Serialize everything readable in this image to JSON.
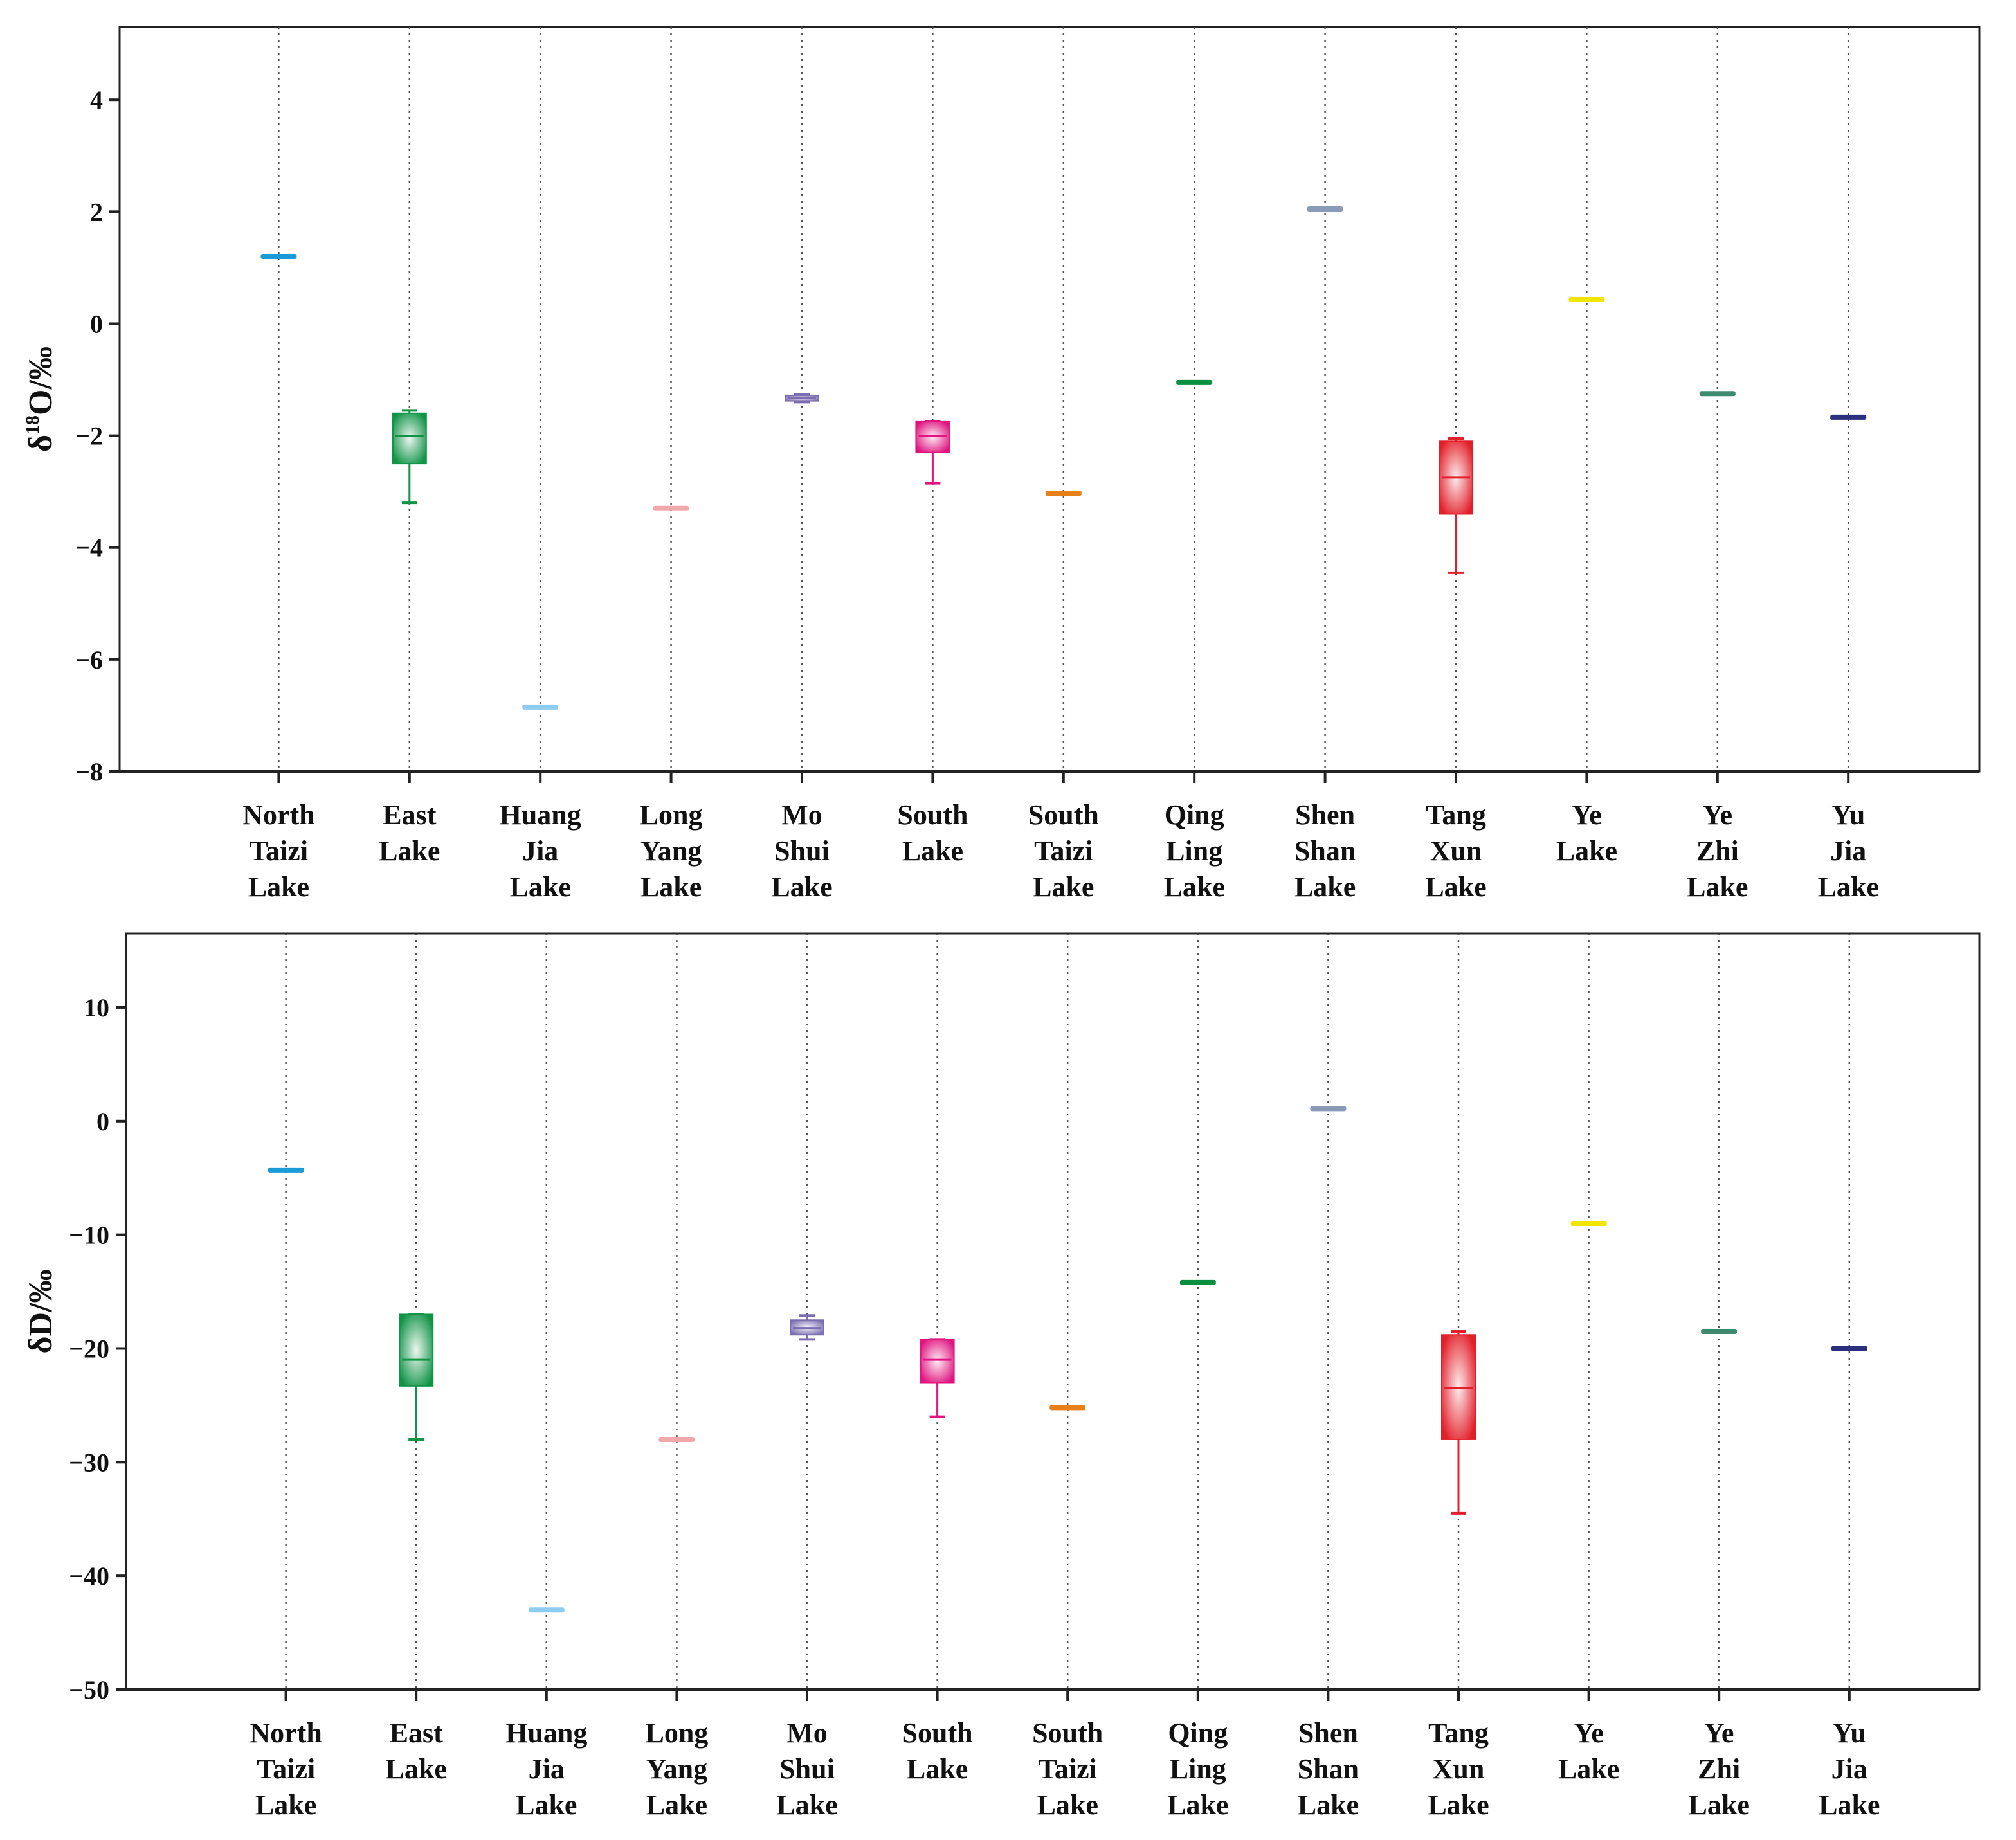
{
  "chart_data": [
    {
      "type": "box",
      "title": "",
      "ylabel": "δ18O/‰",
      "ylabel_parts": {
        "prefix": "δ",
        "sup": "18",
        "suffix": "O/‰"
      },
      "ylim": [
        -8,
        5.3
      ],
      "yticks": [
        4,
        2,
        0,
        -2,
        -4,
        -6,
        -8
      ],
      "ytick_labels": [
        "4",
        "2",
        "0",
        "−2",
        "−4",
        "−6",
        "−8"
      ],
      "grid": "vertical dotted",
      "categories": [
        [
          "North",
          "Taizi",
          "Lake"
        ],
        [
          "East",
          "Lake"
        ],
        [
          "Huang",
          "Jia",
          "Lake"
        ],
        [
          "Long",
          "Yang",
          "Lake"
        ],
        [
          "Mo",
          "Shui",
          "Lake"
        ],
        [
          "South",
          "Lake"
        ],
        [
          "South",
          "Taizi",
          "Lake"
        ],
        [
          "Qing",
          "Ling",
          "Lake"
        ],
        [
          "Shen",
          "Shan",
          "Lake"
        ],
        [
          "Tang",
          "Xun",
          "Lake"
        ],
        [
          "Ye",
          "Lake"
        ],
        [
          "Ye",
          "Zhi",
          "Lake"
        ],
        [
          "Yu",
          "Jia",
          "Lake"
        ]
      ],
      "boxes": [
        {
          "name": "North Taizi Lake",
          "min": 1.2,
          "q1": 1.2,
          "median": 1.2,
          "q3": 1.2,
          "max": 1.2,
          "color": "#1a9ad6"
        },
        {
          "name": "East Lake",
          "min": -3.2,
          "q1": -2.5,
          "median": -2.0,
          "q3": -1.6,
          "max": -1.55,
          "color": "#119447"
        },
        {
          "name": "Huang Jia Lake",
          "min": -6.85,
          "q1": -6.85,
          "median": -6.85,
          "q3": -6.85,
          "max": -6.85,
          "color": "#8fcdf0"
        },
        {
          "name": "Long Yang Lake",
          "min": -3.3,
          "q1": -3.3,
          "median": -3.3,
          "q3": -3.3,
          "max": -3.3,
          "color": "#f0a8aa"
        },
        {
          "name": "Mo Shui Lake",
          "min": -1.4,
          "q1": -1.38,
          "median": -1.33,
          "q3": -1.28,
          "max": -1.26,
          "color": "#7b6db0"
        },
        {
          "name": "South Lake",
          "min": -2.85,
          "q1": -2.3,
          "median": -2.0,
          "q3": -1.75,
          "max": -1.75,
          "color": "#e0157f"
        },
        {
          "name": "South Taizi Lake",
          "min": -3.03,
          "q1": -3.03,
          "median": -3.03,
          "q3": -3.03,
          "max": -3.03,
          "color": "#e8801a"
        },
        {
          "name": "Qing Ling Lake",
          "min": -1.05,
          "q1": -1.05,
          "median": -1.05,
          "q3": -1.05,
          "max": -1.05,
          "color": "#0a8f3e"
        },
        {
          "name": "Shen Shan Lake",
          "min": 2.05,
          "q1": 2.05,
          "median": 2.05,
          "q3": 2.05,
          "max": 2.05,
          "color": "#8a9bb8"
        },
        {
          "name": "Tang Xun Lake",
          "min": -4.45,
          "q1": -3.4,
          "median": -2.75,
          "q3": -2.1,
          "max": -2.05,
          "color": "#e3202a"
        },
        {
          "name": "Ye Lake",
          "min": 0.43,
          "q1": 0.43,
          "median": 0.43,
          "q3": 0.43,
          "max": 0.43,
          "color": "#f2e600"
        },
        {
          "name": "Ye Zhi Lake",
          "min": -1.25,
          "q1": -1.25,
          "median": -1.25,
          "q3": -1.25,
          "max": -1.25,
          "color": "#3e8a6e"
        },
        {
          "name": "Yu Jia Lake",
          "min": -1.67,
          "q1": -1.67,
          "median": -1.67,
          "q3": -1.67,
          "max": -1.67,
          "color": "#2a2f7e"
        }
      ]
    },
    {
      "type": "box",
      "title": "",
      "ylabel": "δD/‰",
      "ylabel_parts": {
        "prefix": "δD/‰",
        "sup": "",
        "suffix": ""
      },
      "ylim": [
        -50,
        16.5
      ],
      "yticks": [
        10,
        0,
        -10,
        -20,
        -30,
        -40,
        -50
      ],
      "ytick_labels": [
        "10",
        "0",
        "−10",
        "−20",
        "−30",
        "−40",
        "−50"
      ],
      "grid": "vertical dotted",
      "categories": [
        [
          "North",
          "Taizi",
          "Lake"
        ],
        [
          "East",
          "Lake"
        ],
        [
          "Huang",
          "Jia",
          "Lake"
        ],
        [
          "Long",
          "Yang",
          "Lake"
        ],
        [
          "Mo",
          "Shui",
          "Lake"
        ],
        [
          "South",
          "Lake"
        ],
        [
          "South",
          "Taizi",
          "Lake"
        ],
        [
          "Qing",
          "Ling",
          "Lake"
        ],
        [
          "Shen",
          "Shan",
          "Lake"
        ],
        [
          "Tang",
          "Xun",
          "Lake"
        ],
        [
          "Ye",
          "Lake"
        ],
        [
          "Ye",
          "Zhi",
          "Lake"
        ],
        [
          "Yu",
          "Jia",
          "Lake"
        ]
      ],
      "boxes": [
        {
          "name": "North Taizi Lake",
          "min": -4.3,
          "q1": -4.3,
          "median": -4.3,
          "q3": -4.3,
          "max": -4.3,
          "color": "#1a9ad6"
        },
        {
          "name": "East Lake",
          "min": -28.0,
          "q1": -23.3,
          "median": -21.0,
          "q3": -17.0,
          "max": -17.0,
          "color": "#119447"
        },
        {
          "name": "Huang Jia Lake",
          "min": -43.0,
          "q1": -43.0,
          "median": -43.0,
          "q3": -43.0,
          "max": -43.0,
          "color": "#8fcdf0"
        },
        {
          "name": "Long Yang Lake",
          "min": -28.0,
          "q1": -28.0,
          "median": -28.0,
          "q3": -28.0,
          "max": -28.0,
          "color": "#f0a8aa"
        },
        {
          "name": "Mo Shui Lake",
          "min": -19.2,
          "q1": -18.8,
          "median": -18.2,
          "q3": -17.5,
          "max": -17.1,
          "color": "#7b6db0"
        },
        {
          "name": "South Lake",
          "min": -26.0,
          "q1": -23.0,
          "median": -21.0,
          "q3": -19.2,
          "max": -19.2,
          "color": "#e0157f"
        },
        {
          "name": "South Taizi Lake",
          "min": -25.2,
          "q1": -25.2,
          "median": -25.2,
          "q3": -25.2,
          "max": -25.2,
          "color": "#e8801a"
        },
        {
          "name": "Qing Ling Lake",
          "min": -14.2,
          "q1": -14.2,
          "median": -14.2,
          "q3": -14.2,
          "max": -14.2,
          "color": "#0a8f3e"
        },
        {
          "name": "Shen Shan Lake",
          "min": 1.1,
          "q1": 1.1,
          "median": 1.1,
          "q3": 1.1,
          "max": 1.1,
          "color": "#8a9bb8"
        },
        {
          "name": "Tang Xun Lake",
          "min": -34.5,
          "q1": -28.0,
          "median": -23.5,
          "q3": -18.8,
          "max": -18.5,
          "color": "#e3202a"
        },
        {
          "name": "Ye Lake",
          "min": -9.0,
          "q1": -9.0,
          "median": -9.0,
          "q3": -9.0,
          "max": -9.0,
          "color": "#f2e600"
        },
        {
          "name": "Ye Zhi Lake",
          "min": -18.5,
          "q1": -18.5,
          "median": -18.5,
          "q3": -18.5,
          "max": -18.5,
          "color": "#3e8a6e"
        },
        {
          "name": "Yu Jia Lake",
          "min": -20.0,
          "q1": -20.0,
          "median": -20.0,
          "q3": -20.0,
          "max": -20.0,
          "color": "#2a2f7e"
        }
      ]
    }
  ]
}
